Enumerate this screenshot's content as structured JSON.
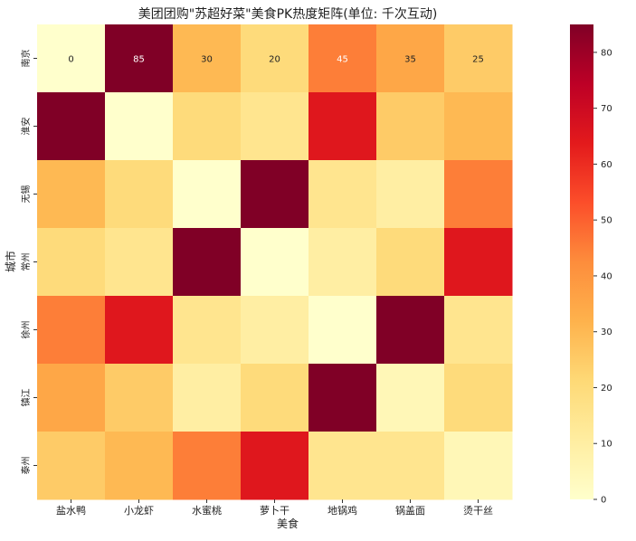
{
  "chart_data": {
    "type": "heatmap",
    "title": "美团团购\"苏超好菜\"美食PK热度矩阵(单位: 千次互动)",
    "xlabel": "美食",
    "ylabel": "城市",
    "x_categories": [
      "盐水鸭",
      "小龙虾",
      "水蜜桃",
      "萝卜干",
      "地锅鸡",
      "锅盖面",
      "烫干丝"
    ],
    "y_categories": [
      "南京",
      "淮安",
      "无锡",
      "常州",
      "徐州",
      "镇江",
      "泰州"
    ],
    "values": [
      [
        0,
        85,
        30,
        20,
        45,
        35,
        25
      ],
      [
        85,
        0,
        20,
        15,
        65,
        25,
        30
      ],
      [
        30,
        20,
        0,
        85,
        15,
        10,
        45
      ],
      [
        20,
        15,
        85,
        0,
        10,
        20,
        65
      ],
      [
        45,
        65,
        15,
        10,
        0,
        85,
        15
      ],
      [
        35,
        25,
        10,
        20,
        85,
        5,
        20
      ],
      [
        25,
        30,
        45,
        65,
        15,
        15,
        5
      ]
    ],
    "annotated_row": 0,
    "colorbar": {
      "min": 0,
      "max": 85,
      "ticks": [
        0,
        10,
        20,
        30,
        40,
        50,
        60,
        70,
        80
      ],
      "colormap": "YlOrRd"
    }
  }
}
